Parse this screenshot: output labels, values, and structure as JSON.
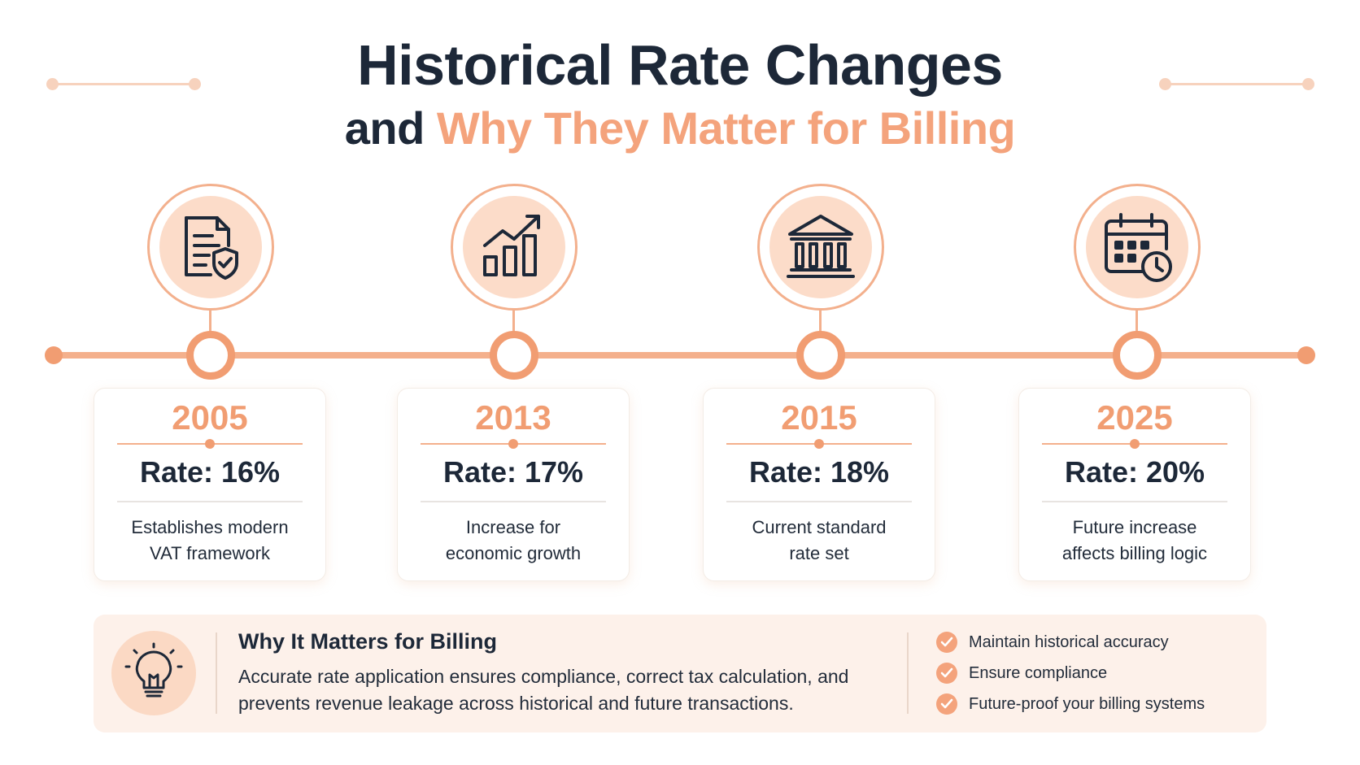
{
  "header": {
    "title": "Historical Rate Changes",
    "subtitle_prefix": "and",
    "subtitle_accent": "Why They Matter for Billing"
  },
  "colors": {
    "accent": "#f19d72",
    "accent_light": "#fcdcc9",
    "text_dark": "#1d2838",
    "panel_bg": "#fdf1ea"
  },
  "timeline": [
    {
      "year": "2005",
      "rate": "Rate: 16%",
      "desc_line1": "Establishes modern",
      "desc_line2": "VAT framework",
      "icon": "document-shield-icon"
    },
    {
      "year": "2013",
      "rate": "Rate: 17%",
      "desc_line1": "Increase for",
      "desc_line2": "economic growth",
      "icon": "growth-chart-icon"
    },
    {
      "year": "2015",
      "rate": "Rate: 18%",
      "desc_line1": "Current standard",
      "desc_line2": "rate set",
      "icon": "government-building-icon"
    },
    {
      "year": "2025",
      "rate": "Rate: 20%",
      "desc_line1": "Future increase",
      "desc_line2": "affects billing logic",
      "icon": "calendar-clock-icon"
    }
  ],
  "why": {
    "icon": "lightbulb-icon",
    "title": "Why It Matters for Billing",
    "text": "Accurate rate application ensures compliance, correct tax calculation, and prevents revenue leakage across historical and future transactions.",
    "checklist": [
      {
        "label": "Maintain historical accuracy",
        "icon": "check-circle-icon"
      },
      {
        "label": "Ensure compliance",
        "icon": "check-circle-icon"
      },
      {
        "label": "Future-proof your billing systems",
        "icon": "check-circle-icon"
      }
    ]
  }
}
